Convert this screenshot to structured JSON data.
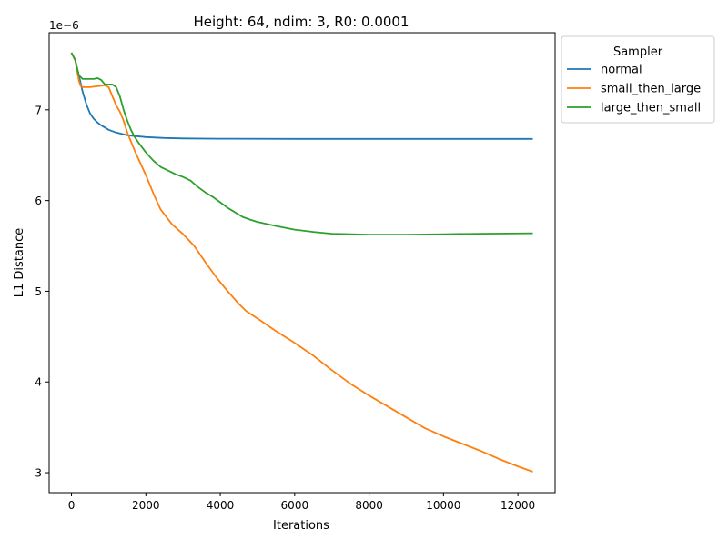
{
  "chart_data": {
    "type": "line",
    "title": "Height: 64, ndim: 3, R0: 0.0001",
    "xlabel": "Iterations",
    "ylabel": "L1 Distance",
    "y_offset_text": "1e−6",
    "xlim": [
      -600,
      13000
    ],
    "ylim": [
      2.78,
      7.85
    ],
    "x_ticks": [
      0,
      2000,
      4000,
      6000,
      8000,
      10000,
      12000
    ],
    "y_ticks": [
      3,
      4,
      5,
      6,
      7
    ],
    "legend": {
      "title": "Sampler",
      "placement": "outside-top-right"
    },
    "grid": false,
    "series": [
      {
        "name": "normal",
        "color": "#1f77b4",
        "points": [
          [
            0,
            7.63
          ],
          [
            100,
            7.55
          ],
          [
            200,
            7.38
          ],
          [
            300,
            7.2
          ],
          [
            400,
            7.06
          ],
          [
            500,
            6.96
          ],
          [
            600,
            6.9
          ],
          [
            700,
            6.86
          ],
          [
            800,
            6.83
          ],
          [
            1000,
            6.78
          ],
          [
            1200,
            6.75
          ],
          [
            1500,
            6.72
          ],
          [
            2000,
            6.7
          ],
          [
            2500,
            6.69
          ],
          [
            3000,
            6.685
          ],
          [
            4000,
            6.682
          ],
          [
            6000,
            6.68
          ],
          [
            8000,
            6.68
          ],
          [
            10000,
            6.68
          ],
          [
            12400,
            6.68
          ]
        ]
      },
      {
        "name": "small_then_large",
        "color": "#ff7f0e",
        "points": [
          [
            0,
            7.63
          ],
          [
            100,
            7.55
          ],
          [
            200,
            7.32
          ],
          [
            250,
            7.26
          ],
          [
            300,
            7.25
          ],
          [
            500,
            7.25
          ],
          [
            700,
            7.26
          ],
          [
            900,
            7.27
          ],
          [
            1000,
            7.25
          ],
          [
            1100,
            7.15
          ],
          [
            1200,
            7.05
          ],
          [
            1300,
            6.98
          ],
          [
            1400,
            6.88
          ],
          [
            1500,
            6.75
          ],
          [
            1700,
            6.55
          ],
          [
            2000,
            6.28
          ],
          [
            2200,
            6.08
          ],
          [
            2400,
            5.9
          ],
          [
            2700,
            5.74
          ],
          [
            3000,
            5.63
          ],
          [
            3300,
            5.5
          ],
          [
            3600,
            5.32
          ],
          [
            3900,
            5.15
          ],
          [
            4200,
            5.0
          ],
          [
            4500,
            4.86
          ],
          [
            4700,
            4.78
          ],
          [
            5000,
            4.7
          ],
          [
            5500,
            4.56
          ],
          [
            6000,
            4.43
          ],
          [
            6500,
            4.29
          ],
          [
            7000,
            4.13
          ],
          [
            7500,
            3.98
          ],
          [
            8000,
            3.85
          ],
          [
            8500,
            3.73
          ],
          [
            9000,
            3.61
          ],
          [
            9500,
            3.49
          ],
          [
            10000,
            3.4
          ],
          [
            10500,
            3.32
          ],
          [
            11000,
            3.24
          ],
          [
            11500,
            3.15
          ],
          [
            12000,
            3.07
          ],
          [
            12400,
            3.01
          ]
        ]
      },
      {
        "name": "large_then_small",
        "color": "#2ca02c",
        "points": [
          [
            0,
            7.63
          ],
          [
            100,
            7.55
          ],
          [
            200,
            7.38
          ],
          [
            300,
            7.34
          ],
          [
            400,
            7.34
          ],
          [
            500,
            7.34
          ],
          [
            600,
            7.34
          ],
          [
            700,
            7.35
          ],
          [
            800,
            7.33
          ],
          [
            900,
            7.28
          ],
          [
            1000,
            7.28
          ],
          [
            1100,
            7.28
          ],
          [
            1200,
            7.25
          ],
          [
            1300,
            7.15
          ],
          [
            1400,
            7.0
          ],
          [
            1500,
            6.88
          ],
          [
            1600,
            6.78
          ],
          [
            1700,
            6.7
          ],
          [
            1800,
            6.64
          ],
          [
            2000,
            6.53
          ],
          [
            2200,
            6.44
          ],
          [
            2400,
            6.37
          ],
          [
            2600,
            6.33
          ],
          [
            2800,
            6.29
          ],
          [
            3000,
            6.26
          ],
          [
            3200,
            6.22
          ],
          [
            3400,
            6.15
          ],
          [
            3600,
            6.09
          ],
          [
            3800,
            6.04
          ],
          [
            4000,
            5.98
          ],
          [
            4200,
            5.92
          ],
          [
            4400,
            5.87
          ],
          [
            4600,
            5.82
          ],
          [
            4800,
            5.79
          ],
          [
            5000,
            5.765
          ],
          [
            5500,
            5.72
          ],
          [
            6000,
            5.68
          ],
          [
            6500,
            5.655
          ],
          [
            7000,
            5.635
          ],
          [
            8000,
            5.625
          ],
          [
            9000,
            5.625
          ],
          [
            10000,
            5.63
          ],
          [
            11000,
            5.635
          ],
          [
            12400,
            5.64
          ]
        ]
      }
    ]
  }
}
